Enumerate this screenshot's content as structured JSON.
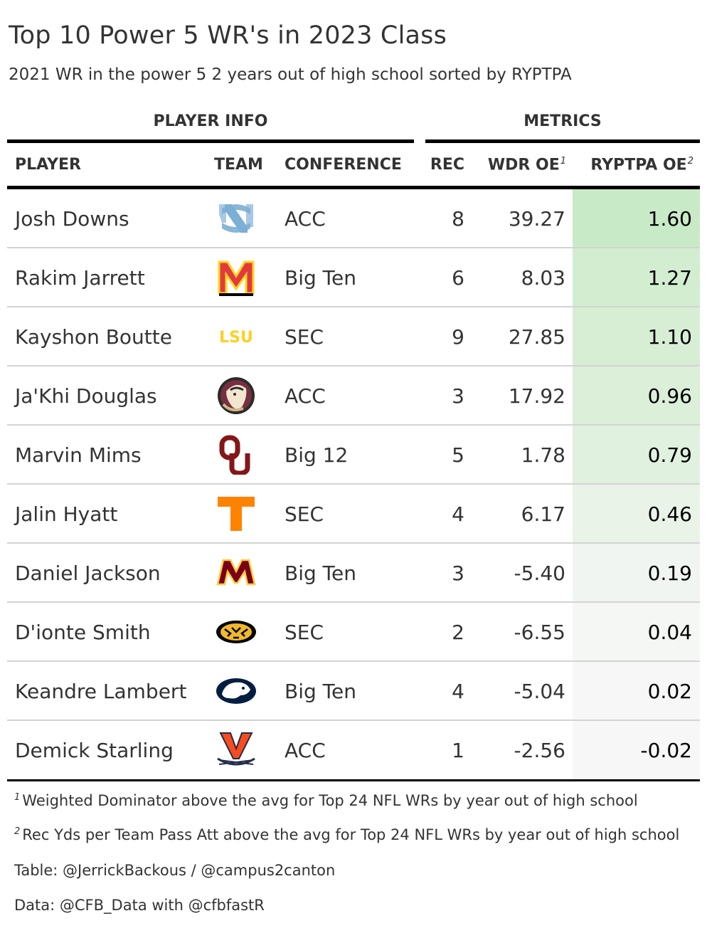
{
  "title": "Top 10 Power 5 WR's in 2023 Class",
  "subtitle": "2021 WR in the power 5 2 years out of high school sorted by RYPTPA",
  "spanners": {
    "player_info": "PLAYER INFO",
    "metrics": "METRICS"
  },
  "columns": {
    "player": "PLAYER",
    "team": "TEAM",
    "conference": "CONFERENCE",
    "rec": "REC",
    "wdr": "WDR OE",
    "wdr_note": "1",
    "ryptpa": "RYPTPA OE",
    "ryptpa_note": "2"
  },
  "chart_data": {
    "type": "table",
    "rows": [
      {
        "player": "Josh Downs",
        "team_logo": "unc-logo",
        "conference": "ACC",
        "rec": "8",
        "wdr": "39.27",
        "ryptpa": "1.60",
        "ryptpa_value": 1.6
      },
      {
        "player": "Rakim Jarrett",
        "team_logo": "maryland-logo",
        "conference": "Big Ten",
        "rec": "6",
        "wdr": "8.03",
        "ryptpa": "1.27",
        "ryptpa_value": 1.27
      },
      {
        "player": "Kayshon Boutte",
        "team_logo": "lsu-logo",
        "conference": "SEC",
        "rec": "9",
        "wdr": "27.85",
        "ryptpa": "1.10",
        "ryptpa_value": 1.1
      },
      {
        "player": "Ja'Khi Douglas",
        "team_logo": "florida-state-logo",
        "conference": "ACC",
        "rec": "3",
        "wdr": "17.92",
        "ryptpa": "0.96",
        "ryptpa_value": 0.96
      },
      {
        "player": "Marvin Mims",
        "team_logo": "oklahoma-logo",
        "conference": "Big 12",
        "rec": "5",
        "wdr": "1.78",
        "ryptpa": "0.79",
        "ryptpa_value": 0.79
      },
      {
        "player": "Jalin Hyatt",
        "team_logo": "tennessee-logo",
        "conference": "SEC",
        "rec": "4",
        "wdr": "6.17",
        "ryptpa": "0.46",
        "ryptpa_value": 0.46
      },
      {
        "player": "Daniel Jackson",
        "team_logo": "minnesota-logo",
        "conference": "Big Ten",
        "rec": "3",
        "wdr": "-5.40",
        "ryptpa": "0.19",
        "ryptpa_value": 0.19
      },
      {
        "player": "D'ionte Smith",
        "team_logo": "missouri-logo",
        "conference": "SEC",
        "rec": "2",
        "wdr": "-6.55",
        "ryptpa": "0.04",
        "ryptpa_value": 0.04
      },
      {
        "player": "Keandre Lambert",
        "team_logo": "penn-state-logo",
        "conference": "Big Ten",
        "rec": "4",
        "wdr": "-5.04",
        "ryptpa": "0.02",
        "ryptpa_value": 0.02
      },
      {
        "player": "Demick Starling",
        "team_logo": "virginia-logo",
        "conference": "ACC",
        "rec": "1",
        "wdr": "-2.56",
        "ryptpa": "-0.02",
        "ryptpa_value": -0.02
      }
    ],
    "color_scale": {
      "low": "#f7f7f7",
      "high": "#c8eac6",
      "domain": [
        -0.02,
        1.6
      ]
    }
  },
  "footnotes": [
    {
      "mark": "1",
      "text": "Weighted Dominator above the avg for Top 24 NFL WRs by year out of high school"
    },
    {
      "mark": "2",
      "text": "Rec Yds per Team Pass Att above the avg for Top 24 NFL WRs by year out of high school"
    }
  ],
  "source_notes": [
    "Table: @JerrickBackous / @campus2canton",
    "Data: @CFB_Data with @cfbfastR"
  ]
}
